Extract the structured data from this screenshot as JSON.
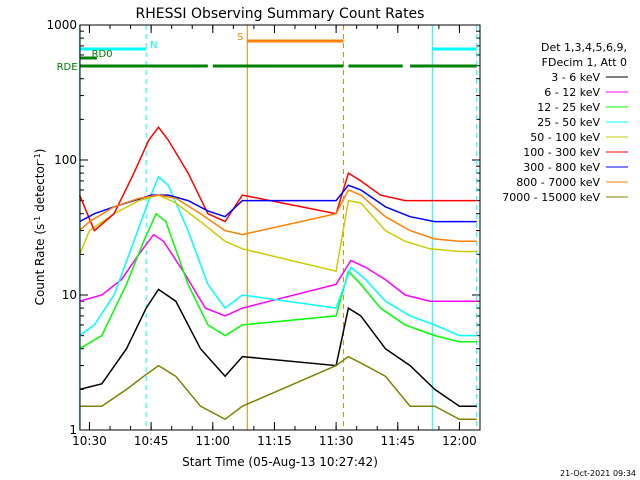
{
  "chart_data": {
    "type": "line",
    "title": "RHESSI Observing Summary Count Rates",
    "xlabel": "Start Time (05-Aug-13 10:27:42)",
    "ylabel_prefix": "Count Rate (s",
    "ylabel_sup1": "-1",
    "ylabel_mid": " detector",
    "ylabel_sup2": "-1",
    "ylabel_suffix": ")",
    "y_scale": "log",
    "xlim": [
      "10:27:42",
      "12:05:00"
    ],
    "ylim": [
      1,
      1000
    ],
    "x_ticks": [
      "10:30",
      "10:45",
      "11:00",
      "11:15",
      "11:30",
      "11:45",
      "12:00"
    ],
    "y_ticks": [
      {
        "value": 1,
        "label": "1"
      },
      {
        "value": 10,
        "label": "10"
      },
      {
        "value": 100,
        "label": "100"
      },
      {
        "value": 1000,
        "label": "1000"
      }
    ],
    "legend_header": [
      "Det 1,3,4,5,6,9,",
      "FDecim 1, Att 0"
    ],
    "legend_placement": "right",
    "timestamp": "21-Oct-2021 09:34",
    "series": [
      {
        "name": "3 - 6 keV",
        "color": "#000000",
        "values": [
          [
            10.46,
            2
          ],
          [
            10.55,
            2.2
          ],
          [
            10.65,
            4
          ],
          [
            10.73,
            8
          ],
          [
            10.78,
            11
          ],
          [
            10.85,
            9
          ],
          [
            10.95,
            4
          ],
          [
            11.05,
            2.5
          ],
          [
            11.12,
            3.5
          ],
          [
            11.5,
            3
          ],
          [
            11.55,
            8
          ],
          [
            11.6,
            7
          ],
          [
            11.7,
            4
          ],
          [
            11.8,
            3
          ],
          [
            11.9,
            2
          ],
          [
            12.0,
            1.5
          ],
          [
            12.07,
            1.5
          ]
        ]
      },
      {
        "name": "6 - 12 keV",
        "color": "#ff00ff",
        "values": [
          [
            10.46,
            9
          ],
          [
            10.55,
            10
          ],
          [
            10.63,
            13
          ],
          [
            10.7,
            20
          ],
          [
            10.76,
            28
          ],
          [
            10.8,
            25
          ],
          [
            10.88,
            15
          ],
          [
            10.97,
            8
          ],
          [
            11.05,
            7
          ],
          [
            11.12,
            8
          ],
          [
            11.5,
            12
          ],
          [
            11.56,
            18
          ],
          [
            11.62,
            16
          ],
          [
            11.7,
            13
          ],
          [
            11.78,
            10
          ],
          [
            11.88,
            9
          ],
          [
            12.0,
            9
          ],
          [
            12.07,
            9
          ]
        ]
      },
      {
        "name": "12 - 25 keV",
        "color": "#00ff00",
        "values": [
          [
            10.46,
            4
          ],
          [
            10.55,
            5
          ],
          [
            10.65,
            12
          ],
          [
            10.72,
            25
          ],
          [
            10.77,
            40
          ],
          [
            10.81,
            35
          ],
          [
            10.9,
            12
          ],
          [
            10.98,
            6
          ],
          [
            11.05,
            5
          ],
          [
            11.12,
            6
          ],
          [
            11.5,
            7
          ],
          [
            11.55,
            15
          ],
          [
            11.6,
            12
          ],
          [
            11.68,
            8
          ],
          [
            11.78,
            6
          ],
          [
            11.9,
            5
          ],
          [
            12.0,
            4.5
          ],
          [
            12.07,
            4.5
          ]
        ]
      },
      {
        "name": "25 - 50 keV",
        "color": "#00ffff",
        "values": [
          [
            10.46,
            5
          ],
          [
            10.52,
            6
          ],
          [
            10.6,
            10
          ],
          [
            10.68,
            25
          ],
          [
            10.74,
            50
          ],
          [
            10.78,
            75
          ],
          [
            10.82,
            65
          ],
          [
            10.9,
            30
          ],
          [
            10.98,
            12
          ],
          [
            11.05,
            8
          ],
          [
            11.12,
            10
          ],
          [
            11.5,
            8
          ],
          [
            11.56,
            16
          ],
          [
            11.62,
            13
          ],
          [
            11.7,
            9
          ],
          [
            11.8,
            7
          ],
          [
            11.9,
            6
          ],
          [
            12.0,
            5
          ],
          [
            12.07,
            5
          ]
        ]
      },
      {
        "name": "50 - 100 keV",
        "color": "#cccc00",
        "values": [
          [
            10.46,
            20
          ],
          [
            10.5,
            30
          ],
          [
            10.6,
            40
          ],
          [
            10.7,
            50
          ],
          [
            10.78,
            55
          ],
          [
            10.85,
            48
          ],
          [
            10.95,
            35
          ],
          [
            11.05,
            25
          ],
          [
            11.12,
            22
          ],
          [
            11.5,
            15
          ],
          [
            11.55,
            50
          ],
          [
            11.6,
            48
          ],
          [
            11.7,
            30
          ],
          [
            11.78,
            25
          ],
          [
            11.88,
            22
          ],
          [
            12.0,
            21
          ],
          [
            12.07,
            21
          ]
        ]
      },
      {
        "name": "100 - 300 keV",
        "color": "#ff0000",
        "values": [
          [
            10.46,
            55
          ],
          [
            10.52,
            30
          ],
          [
            10.6,
            40
          ],
          [
            10.68,
            80
          ],
          [
            10.74,
            140
          ],
          [
            10.78,
            175
          ],
          [
            10.82,
            140
          ],
          [
            10.9,
            80
          ],
          [
            10.98,
            40
          ],
          [
            11.05,
            35
          ],
          [
            11.12,
            55
          ],
          [
            11.5,
            40
          ],
          [
            11.55,
            80
          ],
          [
            11.6,
            70
          ],
          [
            11.68,
            55
          ],
          [
            11.78,
            50
          ],
          [
            11.9,
            50
          ],
          [
            12.0,
            50
          ],
          [
            12.07,
            50
          ]
        ]
      },
      {
        "name": "300 - 800 keV",
        "color": "#0000ff",
        "values": [
          [
            10.46,
            35
          ],
          [
            10.52,
            40
          ],
          [
            10.6,
            45
          ],
          [
            10.68,
            50
          ],
          [
            10.75,
            55
          ],
          [
            10.82,
            55
          ],
          [
            10.9,
            50
          ],
          [
            10.98,
            42
          ],
          [
            11.05,
            38
          ],
          [
            11.12,
            50
          ],
          [
            11.5,
            50
          ],
          [
            11.55,
            65
          ],
          [
            11.6,
            60
          ],
          [
            11.7,
            45
          ],
          [
            11.8,
            38
          ],
          [
            11.9,
            35
          ],
          [
            12.0,
            35
          ],
          [
            12.07,
            35
          ]
        ]
      },
      {
        "name": "800 - 7000 keV",
        "color": "#ff8000",
        "values": [
          [
            10.46,
            30
          ],
          [
            10.5,
            35
          ],
          [
            10.6,
            45
          ],
          [
            10.7,
            52
          ],
          [
            10.78,
            55
          ],
          [
            10.85,
            52
          ],
          [
            10.95,
            40
          ],
          [
            11.05,
            30
          ],
          [
            11.12,
            28
          ],
          [
            11.5,
            40
          ],
          [
            11.55,
            60
          ],
          [
            11.6,
            55
          ],
          [
            11.7,
            38
          ],
          [
            11.8,
            30
          ],
          [
            11.9,
            26
          ],
          [
            12.0,
            25
          ],
          [
            12.07,
            25
          ]
        ]
      },
      {
        "name": "7000 - 15000 keV",
        "color": "#808000",
        "values": [
          [
            10.46,
            1.5
          ],
          [
            10.55,
            1.5
          ],
          [
            10.65,
            2
          ],
          [
            10.72,
            2.5
          ],
          [
            10.78,
            3
          ],
          [
            10.85,
            2.5
          ],
          [
            10.95,
            1.5
          ],
          [
            11.05,
            1.2
          ],
          [
            11.12,
            1.5
          ],
          [
            11.5,
            3
          ],
          [
            11.55,
            3.5
          ],
          [
            11.62,
            3
          ],
          [
            11.7,
            2.5
          ],
          [
            11.8,
            1.5
          ],
          [
            11.9,
            1.5
          ],
          [
            12.0,
            1.2
          ],
          [
            12.07,
            1.2
          ]
        ]
      }
    ],
    "flag_bars": [
      {
        "name": "N",
        "color": "#00ffff",
        "level": 1,
        "intervals": [
          [
            10.46,
            10.73
          ],
          [
            11.89,
            12.07
          ]
        ]
      },
      {
        "name": "S",
        "color": "#ff8000",
        "level": 0,
        "intervals": [
          [
            11.14,
            11.53
          ]
        ]
      },
      {
        "name": "RD0",
        "color": "#008000",
        "level": 2,
        "intervals": [
          [
            10.46,
            10.53
          ]
        ]
      },
      {
        "name": "RDE",
        "color": "#008000",
        "level": 3,
        "intervals": [
          [
            10.46,
            10.98
          ],
          [
            11.0,
            11.53
          ],
          [
            11.55,
            11.77
          ],
          [
            11.8,
            12.07
          ]
        ]
      }
    ],
    "vertical_lines": [
      {
        "x": 10.46,
        "color": "#00ffff",
        "style": "solid"
      },
      {
        "x": 10.73,
        "color": "#00ffff",
        "style": "dashed"
      },
      {
        "x": 11.14,
        "color": "#ff8000",
        "style": "solid"
      },
      {
        "x": 11.53,
        "color": "#ff8000",
        "style": "dashed"
      },
      {
        "x": 11.89,
        "color": "#00ffff",
        "style": "solid"
      },
      {
        "x": 12.07,
        "color": "#00ffff",
        "style": "dashed"
      }
    ]
  }
}
